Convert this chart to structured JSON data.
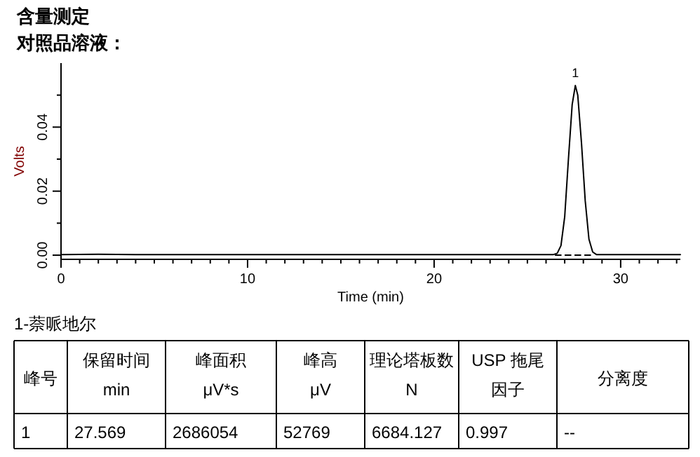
{
  "chart_data": {
    "type": "line",
    "title": "含量测定",
    "subtitle": "对照品溶液：",
    "xlabel": "Time (min)",
    "ylabel": "Volts",
    "series": [
      {
        "color": "#000000",
        "line_style": "solid",
        "x": [
          0,
          2,
          4,
          8,
          12,
          16,
          20,
          24,
          26.4,
          26.6,
          26.8,
          27.0,
          27.2,
          27.4,
          27.57,
          27.7,
          27.9,
          28.1,
          28.3,
          28.5,
          28.7,
          30,
          33.2
        ],
        "values": [
          0.0002,
          0.0003,
          0.0002,
          0.0002,
          0.0002,
          0.0002,
          0.0002,
          0.0002,
          0.0002,
          0.0006,
          0.003,
          0.012,
          0.03,
          0.047,
          0.053,
          0.05,
          0.035,
          0.017,
          0.005,
          0.001,
          0.0002,
          0.0002,
          0.0002
        ]
      },
      {
        "color": "#000000",
        "line_style": "dashed",
        "x": [
          26.5,
          28.6
        ],
        "values": [
          0.0,
          0.0
        ]
      }
    ],
    "xlim": [
      0,
      33.2
    ],
    "ylim": [
      -0.0013,
      0.06
    ],
    "xticks": [
      0,
      {
        "value": 1,
        "label": null
      },
      {
        "value": 2,
        "label": null
      },
      {
        "value": 3,
        "label": null
      },
      {
        "value": 4,
        "label": null
      },
      {
        "value": 5,
        "label": null
      },
      {
        "value": 6,
        "label": null
      },
      {
        "value": 7,
        "label": null
      },
      {
        "value": 8,
        "label": null
      },
      {
        "value": 9,
        "label": null
      },
      10,
      {
        "value": 11,
        "label": null
      },
      {
        "value": 12,
        "label": null
      },
      {
        "value": 13,
        "label": null
      },
      {
        "value": 14,
        "label": null
      },
      {
        "value": 15,
        "label": null
      },
      {
        "value": 16,
        "label": null
      },
      {
        "value": 17,
        "label": null
      },
      {
        "value": 18,
        "label": null
      },
      {
        "value": 19,
        "label": null
      },
      20,
      {
        "value": 21,
        "label": null
      },
      {
        "value": 22,
        "label": null
      },
      {
        "value": 23,
        "label": null
      },
      {
        "value": 24,
        "label": null
      },
      {
        "value": 25,
        "label": null
      },
      {
        "value": 26,
        "label": null
      },
      {
        "value": 27,
        "label": null
      },
      {
        "value": 28,
        "label": null
      },
      {
        "value": 29,
        "label": null
      },
      30,
      {
        "value": 31,
        "label": null
      },
      {
        "value": 32,
        "label": null
      },
      {
        "value": 33,
        "label": null
      }
    ],
    "yticks": [
      {
        "value": 0,
        "label": "0.00"
      },
      {
        "value": 0.01,
        "label": null
      },
      {
        "value": 0.02,
        "label": "0.02"
      },
      {
        "value": 0.03,
        "label": null
      },
      {
        "value": 0.04,
        "label": "0.04"
      },
      {
        "value": 0.05,
        "label": null
      }
    ],
    "marker": "none",
    "annotations": [
      {
        "text": "1",
        "x": 27.57,
        "y": 0.053
      },
      "1-萘哌地尔",
      "峰号",
      "保留时间\nmin",
      "峰面积\nμV*s",
      "峰高\nμV",
      "理论塔板数\nN",
      "USP 拖尾因子",
      "分离度",
      "1",
      "27.569",
      "2686054",
      "52769",
      "6684.127",
      "0.997",
      "--"
    ]
  }
}
